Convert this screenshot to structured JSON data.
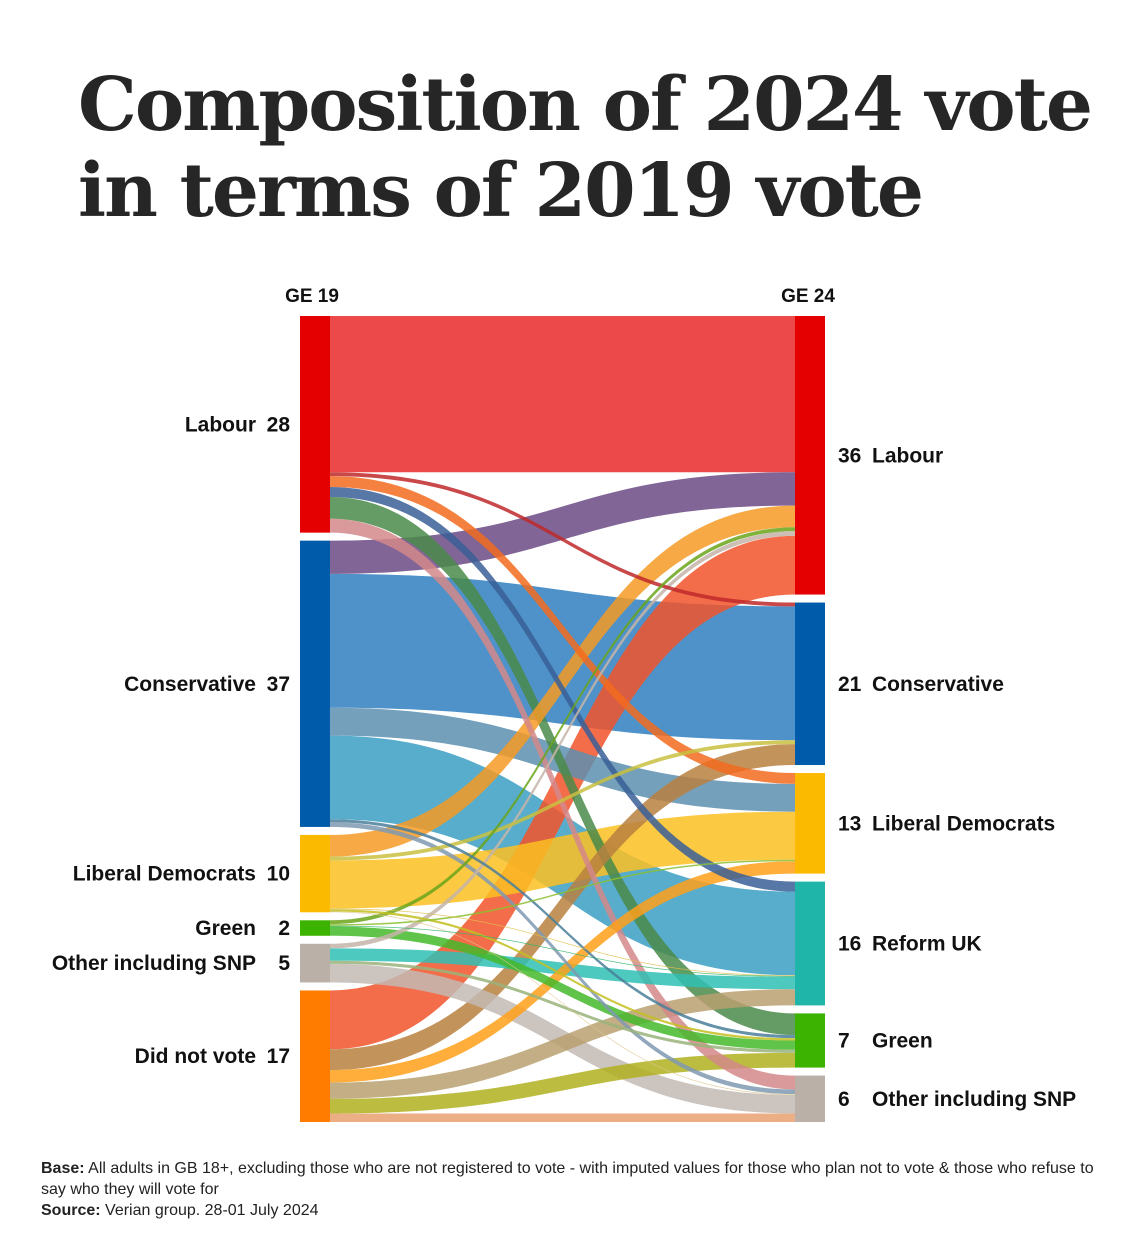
{
  "title": "Composition of 2024 vote in terms of 2019 vote",
  "footer": {
    "base_label": "Base:",
    "base_text": "All adults in GB 18+, excluding those who are not registered to vote - with imputed values for those who plan not to vote & those who refuse to say who they will vote for",
    "source_label": "Source:",
    "source_text": "Verian group. 28-01 July 2024"
  },
  "chart_data": {
    "type": "sankey",
    "left_header": "GE 19",
    "right_header": "GE 24",
    "left_nodes": [
      {
        "id": "L_lab",
        "name": "Labour",
        "value": 28,
        "color": "#e40000"
      },
      {
        "id": "L_con",
        "name": "Conservative",
        "value": 37,
        "color": "#005bab"
      },
      {
        "id": "L_ld",
        "name": "Liberal  Democrats",
        "value": 10,
        "color": "#fbba00"
      },
      {
        "id": "L_grn",
        "name": "Green",
        "value": 2,
        "color": "#3cb300"
      },
      {
        "id": "L_oth",
        "name": "Other  including SNP",
        "value": 5,
        "color": "#bab0a8"
      },
      {
        "id": "L_dnv",
        "name": "Did not vote",
        "value": 17,
        "color": "#ff7c00"
      }
    ],
    "right_nodes": [
      {
        "id": "R_lab",
        "name": "Labour",
        "value": 36,
        "color": "#e40000"
      },
      {
        "id": "R_con",
        "name": "Conservative",
        "value": 21,
        "color": "#005bab"
      },
      {
        "id": "R_ld",
        "name": "Liberal Democrats",
        "value": 13,
        "color": "#fbba00"
      },
      {
        "id": "R_ref",
        "name": "Reform UK",
        "value": 16,
        "color": "#1fb5a8"
      },
      {
        "id": "R_grn",
        "name": "Green",
        "value": 7,
        "color": "#3cb300"
      },
      {
        "id": "R_oth",
        "name": "Other including SNP",
        "value": 6,
        "color": "#bab0a8"
      }
    ],
    "flows": [
      {
        "from": "L_lab",
        "to": "R_lab",
        "value": 20.2,
        "color": "#e92a2a"
      },
      {
        "from": "L_lab",
        "to": "R_con",
        "value": 0.5,
        "color": "#c0292a"
      },
      {
        "from": "L_lab",
        "to": "R_ld",
        "value": 1.4,
        "color": "#f26b1f"
      },
      {
        "from": "L_lab",
        "to": "R_ref",
        "value": 1.3,
        "color": "#3a5f96"
      },
      {
        "from": "L_lab",
        "to": "R_grn",
        "value": 2.8,
        "color": "#4a8a4a"
      },
      {
        "from": "L_lab",
        "to": "R_oth",
        "value": 1.8,
        "color": "#d4888a"
      },
      {
        "from": "L_con",
        "to": "R_lab",
        "value": 4.3,
        "color": "#6b4a84"
      },
      {
        "from": "L_con",
        "to": "R_con",
        "value": 17.3,
        "color": "#2f7fbf"
      },
      {
        "from": "L_con",
        "to": "R_ld",
        "value": 3.6,
        "color": "#5c8fb0"
      },
      {
        "from": "L_con",
        "to": "R_ref",
        "value": 10.8,
        "color": "#3a9fc2"
      },
      {
        "from": "L_con",
        "to": "R_grn",
        "value": 0.4,
        "color": "#4a7f9a"
      },
      {
        "from": "L_con",
        "to": "R_oth",
        "value": 0.6,
        "color": "#7f99b0"
      },
      {
        "from": "L_ld",
        "to": "R_lab",
        "value": 2.8,
        "color": "#f59a25"
      },
      {
        "from": "L_ld",
        "to": "R_con",
        "value": 0.5,
        "color": "#c9c040"
      },
      {
        "from": "L_ld",
        "to": "R_ld",
        "value": 6.2,
        "color": "#fbbf22"
      },
      {
        "from": "L_ld",
        "to": "R_ref",
        "value": 0.1,
        "color": "#e0c050"
      },
      {
        "from": "L_ld",
        "to": "R_grn",
        "value": 0.3,
        "color": "#c3c020"
      },
      {
        "from": "L_ld",
        "to": "R_oth",
        "value": 0.1,
        "color": "#e0c890"
      },
      {
        "from": "L_grn",
        "to": "R_lab",
        "value": 0.5,
        "color": "#6aa51a"
      },
      {
        "from": "L_grn",
        "to": "R_ld",
        "value": 0.2,
        "color": "#8cbf30"
      },
      {
        "from": "L_grn",
        "to": "R_ref",
        "value": 0.1,
        "color": "#35b56a"
      },
      {
        "from": "L_grn",
        "to": "R_grn",
        "value": 1.2,
        "color": "#44b82a"
      },
      {
        "from": "L_oth",
        "to": "R_lab",
        "value": 0.6,
        "color": "#c4b4a8"
      },
      {
        "from": "L_oth",
        "to": "R_ref",
        "value": 1.6,
        "color": "#2fc0b4"
      },
      {
        "from": "L_oth",
        "to": "R_grn",
        "value": 0.4,
        "color": "#9ab37a"
      },
      {
        "from": "L_oth",
        "to": "R_oth",
        "value": 2.4,
        "color": "#c3bab3"
      },
      {
        "from": "L_dnv",
        "to": "R_lab",
        "value": 7.6,
        "color": "#f2542a"
      },
      {
        "from": "L_dnv",
        "to": "R_con",
        "value": 2.7,
        "color": "#b88040"
      },
      {
        "from": "L_dnv",
        "to": "R_ld",
        "value": 1.6,
        "color": "#ffa01a"
      },
      {
        "from": "L_dnv",
        "to": "R_ref",
        "value": 2.1,
        "color": "#b8a070"
      },
      {
        "from": "L_dnv",
        "to": "R_grn",
        "value": 1.9,
        "color": "#b0b020"
      },
      {
        "from": "L_dnv",
        "to": "R_oth",
        "value": 1.1,
        "color": "#e8a070"
      }
    ]
  }
}
